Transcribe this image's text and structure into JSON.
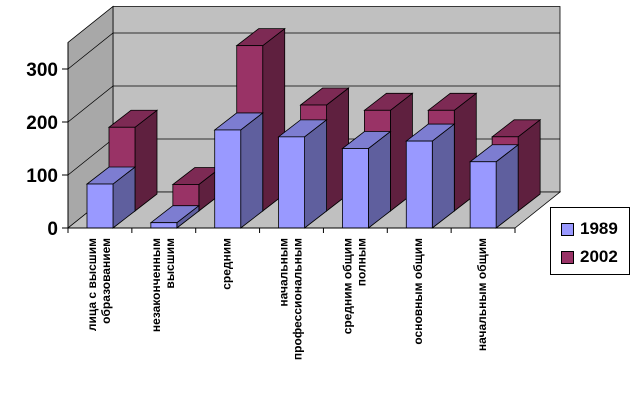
{
  "chart_data": {
    "type": "bar",
    "subtype": "3d-clustered-column",
    "categories": [
      [
        "лица с высшим",
        "образованием"
      ],
      [
        "незаконченным",
        "высшим"
      ],
      [
        "средним"
      ],
      [
        "начальным",
        "профессиональным"
      ],
      [
        "средним общим",
        "полным"
      ],
      [
        "основным общим"
      ],
      [
        "начальным общим"
      ]
    ],
    "series": [
      {
        "name": "1989",
        "color": "#9999ff",
        "values": [
          83,
          10,
          185,
          172,
          150,
          164,
          125
        ]
      },
      {
        "name": "2002",
        "color": "#993366",
        "values": [
          158,
          50,
          312,
          200,
          190,
          190,
          140
        ]
      }
    ],
    "y_ticks": [
      "0",
      "100",
      "200",
      "300"
    ],
    "ylim": [
      0,
      350
    ],
    "grid": true,
    "legend_position": "right"
  }
}
